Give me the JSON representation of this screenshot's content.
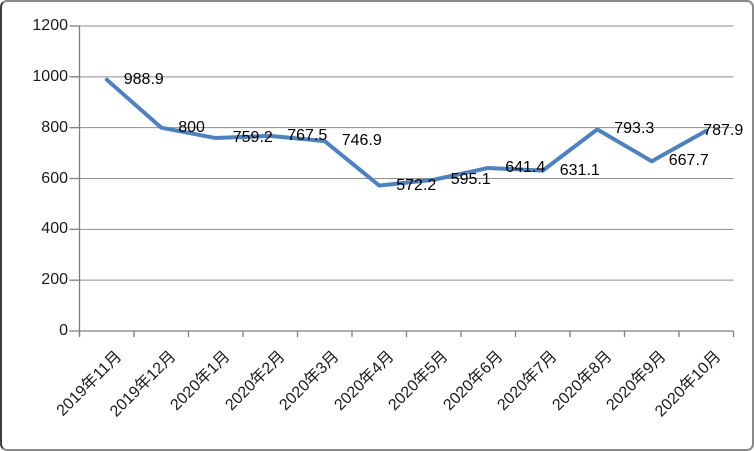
{
  "frame": {
    "background": "#FFFFFF",
    "border_color": "#8A8A8A"
  },
  "chart_data": {
    "type": "line",
    "title": "",
    "xlabel": "",
    "ylabel": "",
    "categories": [
      "2019年11月",
      "2019年12月",
      "2020年1月",
      "2020年2月",
      "2020年3月",
      "2020年4月",
      "2020年5月",
      "2020年6月",
      "2020年7月",
      "2020年8月",
      "2020年9月",
      "2020年10月"
    ],
    "values": [
      988.9,
      800,
      759.2,
      767.5,
      746.9,
      572.2,
      595.1,
      641.4,
      631.1,
      793.3,
      667.7,
      787.9
    ],
    "data_labels": [
      "988.9",
      "800",
      "759.2",
      "767.5",
      "746.9",
      "572.2",
      "595.1",
      "641.4",
      "631.1",
      "793.3",
      "667.7",
      "787.9"
    ],
    "ylim": [
      0,
      1200
    ],
    "ytick_step": 200,
    "yticks": [
      1200,
      1000,
      800,
      600,
      400,
      200,
      0
    ],
    "grid": true,
    "legend": "none",
    "line_color": "#4F81BD",
    "line_width": 4,
    "gridline_color": "#8E8E8E",
    "axis_color": "#7F7F7F",
    "tick_label_color": "#1A1A1A",
    "data_label_color": "#000000"
  }
}
